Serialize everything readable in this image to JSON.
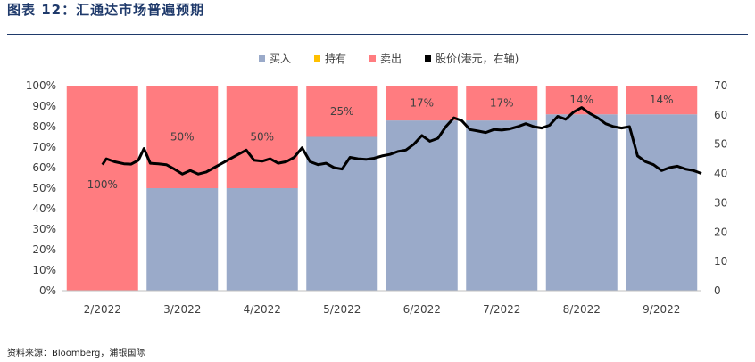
{
  "header": {
    "title": "图表 12：汇通达市场普遍预期"
  },
  "footer": {
    "source": "资料来源：Bloomberg，浦银国际"
  },
  "colors": {
    "buy": "#9aaac9",
    "hold": "#ffc000",
    "sell": "#ff7c80",
    "price": "#000000",
    "accent": "#1f3a6b"
  },
  "chart_data": {
    "type": "bar",
    "stacked": true,
    "categories": [
      "2/2022",
      "3/2022",
      "4/2022",
      "5/2022",
      "6/2022",
      "7/2022",
      "8/2022",
      "9/2022"
    ],
    "legend_position": "top",
    "series": [
      {
        "name": "买入",
        "axis": "left",
        "values": [
          0,
          50,
          50,
          75,
          83,
          83,
          86,
          86
        ]
      },
      {
        "name": "持有",
        "axis": "left",
        "values": [
          0,
          0,
          0,
          0,
          0,
          0,
          0,
          0
        ]
      },
      {
        "name": "卖出",
        "axis": "left",
        "values": [
          100,
          50,
          50,
          25,
          17,
          17,
          14,
          14
        ],
        "labels": [
          "100%",
          "50%",
          "50%",
          "25%",
          "17%",
          "17%",
          "14%",
          "14%"
        ]
      },
      {
        "name": "股价(港元，右轴)",
        "type": "line",
        "axis": "right",
        "x": [
          0.0,
          0.05,
          0.15,
          0.27,
          0.36,
          0.45,
          0.52,
          0.6,
          0.7,
          0.8,
          0.9,
          1.0,
          1.1,
          1.2,
          1.3,
          1.4,
          1.5,
          1.6,
          1.7,
          1.8,
          1.9,
          2.0,
          2.1,
          2.2,
          2.3,
          2.4,
          2.5,
          2.6,
          2.7,
          2.8,
          2.9,
          3.0,
          3.1,
          3.2,
          3.3,
          3.4,
          3.5,
          3.6,
          3.7,
          3.8,
          3.9,
          4.0,
          4.1,
          4.2,
          4.3,
          4.4,
          4.5,
          4.6,
          4.7,
          4.8,
          4.9,
          5.0,
          5.1,
          5.2,
          5.3,
          5.4,
          5.5,
          5.6,
          5.7,
          5.8,
          5.9,
          6.0,
          6.1,
          6.2,
          6.3,
          6.4,
          6.5,
          6.6,
          6.7,
          6.8,
          6.9,
          7.0,
          7.1,
          7.2,
          7.3,
          7.4,
          7.45,
          7.5
        ],
        "values": [
          43.0,
          45.0,
          44.0,
          43.3,
          43.2,
          44.5,
          48.5,
          43.5,
          43.3,
          43.0,
          41.5,
          39.8,
          41.0,
          39.8,
          40.5,
          42.0,
          43.5,
          45.0,
          46.5,
          48.0,
          44.5,
          44.2,
          45.0,
          43.5,
          44.0,
          45.5,
          48.8,
          44.0,
          43.0,
          43.5,
          42.0,
          41.5,
          45.5,
          45.0,
          44.8,
          45.2,
          46.0,
          46.5,
          47.5,
          48.0,
          50.0,
          53.0,
          51.0,
          52.0,
          56.0,
          59.0,
          58.0,
          55.0,
          54.5,
          54.0,
          55.0,
          54.8,
          55.2,
          56.0,
          57.0,
          56.0,
          55.5,
          56.5,
          59.5,
          58.5,
          61.0,
          62.5,
          60.5,
          59.0,
          57.0,
          56.0,
          55.5,
          56.0,
          46.0,
          44.0,
          43.0,
          41.0,
          42.0,
          42.5,
          41.5,
          41.0,
          40.5,
          40.0
        ]
      }
    ],
    "y_left": {
      "min": 0,
      "max": 100,
      "ticks": [
        "0%",
        "10%",
        "20%",
        "30%",
        "40%",
        "50%",
        "60%",
        "70%",
        "80%",
        "90%",
        "100%"
      ]
    },
    "y_right": {
      "min": 0,
      "max": 70,
      "ticks": [
        "0",
        "10",
        "20",
        "30",
        "40",
        "50",
        "60",
        "70"
      ]
    },
    "grid": false
  }
}
